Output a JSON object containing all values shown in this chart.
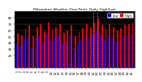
{
  "title": "Milwaukee Weather Dew Point  Daily High/Low",
  "bar_width": 0.4,
  "background_color": "#ffffff",
  "plot_bg_color": "#000000",
  "grid_color": "#555555",
  "high_color": "#dd0000",
  "low_color": "#0000dd",
  "num_bars": 31,
  "high_values": [
    55,
    52,
    62,
    68,
    50,
    65,
    70,
    58,
    72,
    62,
    65,
    70,
    55,
    60,
    68,
    50,
    57,
    63,
    70,
    65,
    72,
    78,
    68,
    63,
    70,
    65,
    60,
    63,
    68,
    70,
    72
  ],
  "low_values": [
    38,
    35,
    45,
    50,
    33,
    48,
    52,
    40,
    54,
    44,
    48,
    52,
    38,
    42,
    50,
    30,
    40,
    44,
    52,
    48,
    54,
    58,
    50,
    44,
    52,
    48,
    42,
    44,
    50,
    52,
    54
  ],
  "x_labels": [
    "1",
    "2",
    "3",
    "4",
    "5",
    "6",
    "7",
    "8",
    "9",
    "10",
    "11",
    "12",
    "13",
    "14",
    "15",
    "16",
    "17",
    "18",
    "19",
    "20",
    "21",
    "22",
    "23",
    "24",
    "25",
    "26",
    "27",
    "28",
    "29",
    "30",
    "31"
  ],
  "ylim": [
    0,
    90
  ],
  "yticks": [
    20,
    30,
    40,
    50,
    60,
    70,
    80
  ],
  "ytick_labels": [
    "20",
    "30",
    "40",
    "50",
    "60",
    "70",
    "80"
  ],
  "legend_high": "High",
  "legend_low": "Low",
  "dashed_indices": [
    20,
    21
  ],
  "title_fontsize": 3.2,
  "tick_fontsize": 2.8,
  "legend_fontsize": 2.8
}
